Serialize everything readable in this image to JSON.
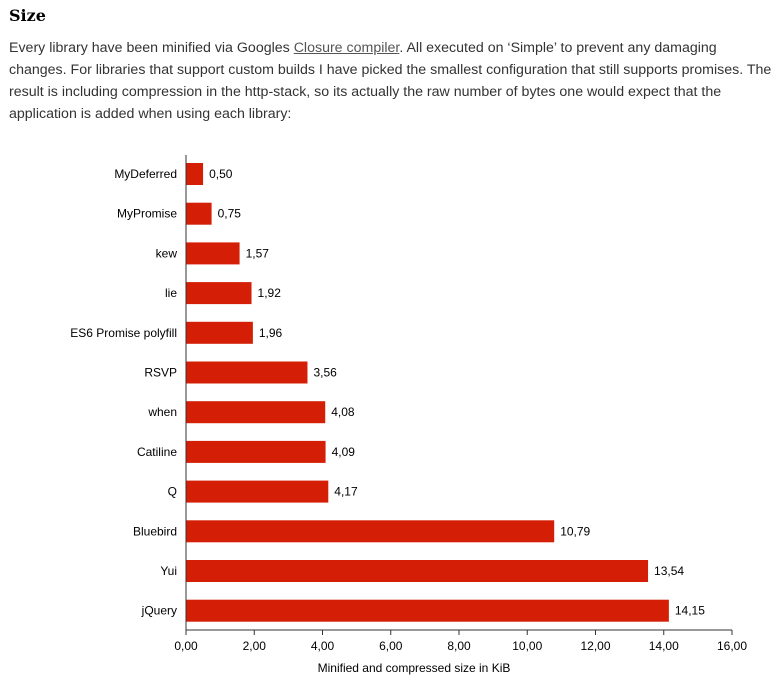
{
  "heading": "Size",
  "paragraph": {
    "before_link": "Every library have been minified via Googles ",
    "link_text": "Closure compiler",
    "after_link": ". All executed on ‘Simple’ to prevent any damaging changes. For libraries that support custom builds I have picked the smallest configuration that still supports promises. The result is including compression in the http-stack, so its actually the raw number of bytes one would expect that the application is added when using each library:"
  },
  "chart_data": {
    "type": "bar",
    "orientation": "horizontal",
    "categories": [
      "MyDeferred",
      "MyPromise",
      "kew",
      "lie",
      "ES6 Promise polyfill",
      "RSVP",
      "when",
      "Catiline",
      "Q",
      "Bluebird",
      "Yui",
      "jQuery"
    ],
    "values": [
      0.5,
      0.75,
      1.57,
      1.92,
      1.96,
      3.56,
      4.08,
      4.09,
      4.17,
      10.79,
      13.54,
      14.15
    ],
    "value_labels": [
      "0,50",
      "0,75",
      "1,57",
      "1,92",
      "1,96",
      "3,56",
      "4,08",
      "4,09",
      "4,17",
      "10,79",
      "13,54",
      "14,15"
    ],
    "xlim": [
      0,
      16
    ],
    "x_ticks": [
      0,
      2,
      4,
      6,
      8,
      10,
      12,
      14,
      16
    ],
    "x_tick_labels": [
      "0,00",
      "2,00",
      "4,00",
      "6,00",
      "8,00",
      "10,00",
      "12,00",
      "14,00",
      "16,00"
    ],
    "xlabel": "Minified and compressed size in KiB",
    "ylabel": "",
    "title": "",
    "bar_color": "#d41f06",
    "grid": false,
    "legend": "none"
  }
}
